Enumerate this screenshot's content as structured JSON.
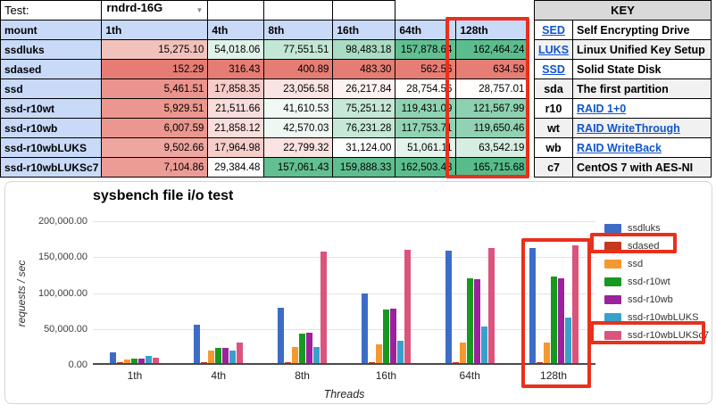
{
  "test": {
    "label": "Test:",
    "value": "rndrd-16G",
    "dropdown_icon": "caret-down"
  },
  "table": {
    "mount_header": "mount",
    "columns": [
      "1th",
      "4th",
      "8th",
      "16th",
      "64th",
      "128th"
    ],
    "rows": [
      {
        "mount": "ssdluks",
        "values": [
          15275.1,
          54018.06,
          77551.51,
          98483.18,
          157878.64,
          162464.24
        ]
      },
      {
        "mount": "sdased",
        "values": [
          152.29,
          316.43,
          400.89,
          483.3,
          562.56,
          634.59
        ]
      },
      {
        "mount": "ssd",
        "values": [
          5461.51,
          17858.35,
          23056.58,
          26217.84,
          28754.56,
          28757.01
        ]
      },
      {
        "mount": "ssd-r10wt",
        "values": [
          5929.51,
          21511.66,
          41610.53,
          75251.12,
          119431.09,
          121567.99
        ]
      },
      {
        "mount": "ssd-r10wb",
        "values": [
          6007.59,
          21858.12,
          42570.03,
          76231.28,
          117753.71,
          119650.46
        ]
      },
      {
        "mount": "ssd-r10wbLUKS",
        "values": [
          9502.66,
          17964.98,
          22799.32,
          31124.0,
          51061.11,
          63542.19
        ]
      },
      {
        "mount": "ssd-r10wbLUKSc7",
        "values": [
          7104.86,
          29384.48,
          157061.43,
          159888.33,
          162503.43,
          165715.68
        ]
      }
    ],
    "conditional_format": {
      "min_color": "#e67c73",
      "mid_color": "#ffffff",
      "max_color": "#57bb8a"
    },
    "header_bg": "#c9daf8"
  },
  "key": {
    "title": "KEY",
    "rows": [
      {
        "abbr": "SED",
        "abbr_is_link": true,
        "desc": "Self Encrypting Drive",
        "desc_is_link": false
      },
      {
        "abbr": "LUKS",
        "abbr_is_link": true,
        "desc": "Linux Unified Key Setup",
        "desc_is_link": false
      },
      {
        "abbr": "SSD",
        "abbr_is_link": true,
        "desc": "Solid State Disk",
        "desc_is_link": false
      },
      {
        "abbr": "sda",
        "abbr_is_link": false,
        "desc": "The first partition",
        "desc_is_link": false
      },
      {
        "abbr": "r10",
        "abbr_is_link": false,
        "desc": "RAID 1+0",
        "desc_is_link": true
      },
      {
        "abbr": "wt",
        "abbr_is_link": false,
        "desc": "RAID WriteThrough",
        "desc_is_link": true
      },
      {
        "abbr": "wb",
        "abbr_is_link": false,
        "desc": "RAID WriteBack",
        "desc_is_link": true
      },
      {
        "abbr": "c7",
        "abbr_is_link": false,
        "desc": "CentOS 7 with AES-NI",
        "desc_is_link": false
      }
    ],
    "link_color": "#1155cc"
  },
  "chart_data": {
    "type": "bar",
    "title": "sysbench file i/o test",
    "xlabel": "Threads",
    "ylabel": "requests / sec",
    "categories": [
      "1th",
      "4th",
      "8th",
      "16th",
      "64th",
      "128th"
    ],
    "series": [
      {
        "name": "ssdluks",
        "color": "#3d6cc7",
        "values": [
          15275.1,
          54018.06,
          77551.51,
          98483.18,
          157878.64,
          162464.24
        ]
      },
      {
        "name": "sdased",
        "color": "#c23a1b",
        "values": [
          152.29,
          316.43,
          400.89,
          483.3,
          562.56,
          634.59
        ]
      },
      {
        "name": "ssd",
        "color": "#f4992f",
        "values": [
          5461.51,
          17858.35,
          23056.58,
          26217.84,
          28754.56,
          28757.01
        ]
      },
      {
        "name": "ssd-r10wt",
        "color": "#17991f",
        "values": [
          5929.51,
          21511.66,
          41610.53,
          75251.12,
          119431.09,
          121567.99
        ]
      },
      {
        "name": "ssd-r10wb",
        "color": "#9c219c",
        "values": [
          6007.59,
          21858.12,
          42570.03,
          76231.28,
          117753.71,
          119650.46
        ]
      },
      {
        "name": "ssd-r10wbLUKS",
        "color": "#37a1ca",
        "values": [
          9502.66,
          17964.98,
          22799.32,
          31124.0,
          51061.11,
          63542.19
        ]
      },
      {
        "name": "ssd-r10wbLUKSc7",
        "color": "#da547e",
        "values": [
          7104.86,
          29384.48,
          157061.43,
          159888.33,
          162503.43,
          165715.68
        ]
      }
    ],
    "ylim": [
      0,
      200000
    ],
    "yticks": [
      "200,000.00",
      "150,000.00",
      "100,000.00",
      "50,000.00",
      "0.00"
    ],
    "grid": true,
    "legend_position": "right"
  },
  "annotations": {
    "highlight_color": "#e8301d",
    "highlighted_column": "128th",
    "highlighted_legend_items": [
      "sdased",
      "ssd-r10wbLUKSc7"
    ],
    "highlighted_bar_group": "128th"
  }
}
